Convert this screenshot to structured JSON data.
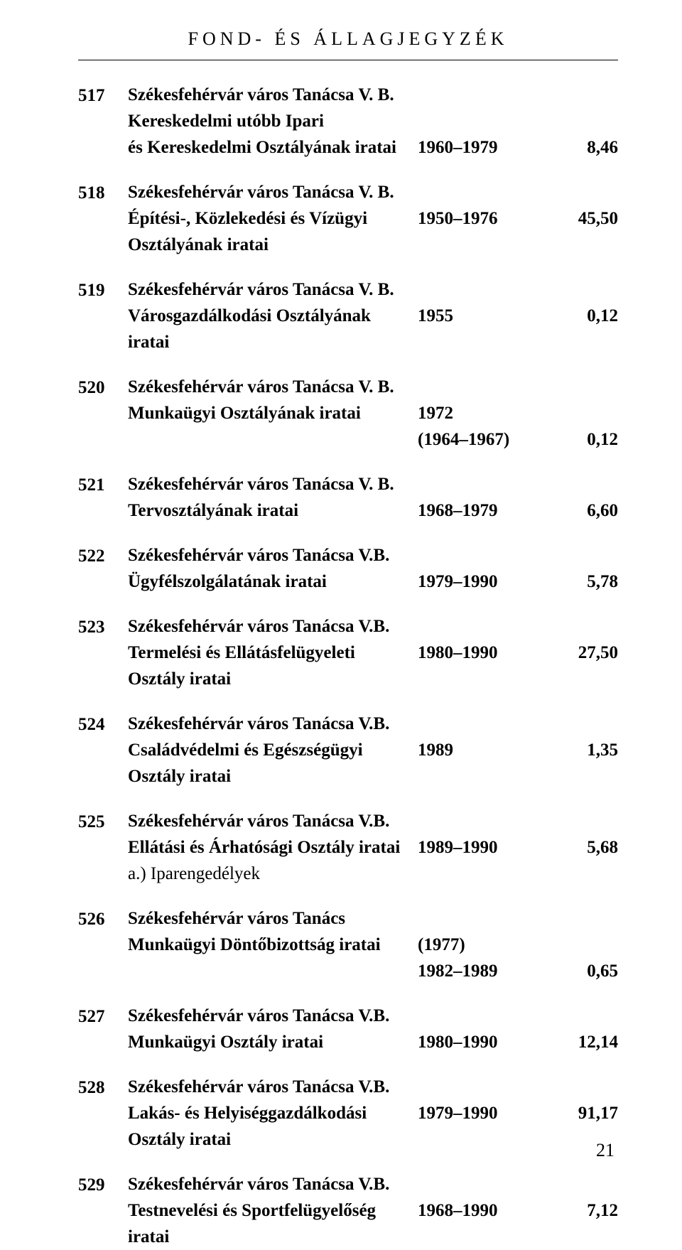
{
  "header": "FOND- ÉS ÁLLAGJEGYZÉK",
  "page_number": "21",
  "entries": [
    {
      "num": "517",
      "title": "Székesfehérvár város Tanácsa V. B.",
      "lines": [
        {
          "desc": "Kereskedelmi utóbb Ipari",
          "date": "",
          "amount": "",
          "bold": true
        },
        {
          "desc": "és Kereskedelmi Osztályának iratai",
          "date": "1960–1979",
          "amount": "8,46",
          "bold": true
        }
      ]
    },
    {
      "num": "518",
      "title": "Székesfehérvár város Tanácsa V. B.",
      "lines": [
        {
          "desc": "Építési-, Közlekedési és Vízügyi Osztályának iratai",
          "date": "1950–1976",
          "amount": "45,50",
          "bold": true
        }
      ]
    },
    {
      "num": "519",
      "title": "Székesfehérvár város Tanácsa V. B.",
      "lines": [
        {
          "desc": "Városgazdálkodási Osztályának iratai",
          "date": "1955",
          "amount": "0,12",
          "bold": true
        }
      ]
    },
    {
      "num": "520",
      "title": "Székesfehérvár város Tanácsa V. B.",
      "lines": [
        {
          "desc": "Munkaügyi Osztályának iratai",
          "date": "1972",
          "amount": "",
          "bold": true
        },
        {
          "desc": "",
          "date": "(1964–1967)",
          "amount": "0,12",
          "bold": true
        }
      ]
    },
    {
      "num": "521",
      "title": "Székesfehérvár város Tanácsa V. B.",
      "lines": [
        {
          "desc": "Tervosztályának iratai",
          "date": "1968–1979",
          "amount": "6,60",
          "bold": true
        }
      ]
    },
    {
      "num": "522",
      "title": "Székesfehérvár város Tanácsa V.B.",
      "lines": [
        {
          "desc": "Ügyfélszolgálatának iratai",
          "date": "1979–1990",
          "amount": "5,78",
          "bold": true
        }
      ]
    },
    {
      "num": "523",
      "title": "Székesfehérvár város Tanácsa V.B.",
      "lines": [
        {
          "desc": "Termelési és Ellátásfelügyeleti Osztály iratai",
          "date": "1980–1990",
          "amount": "27,50",
          "bold": true
        }
      ]
    },
    {
      "num": "524",
      "title": "Székesfehérvár város Tanácsa V.B.",
      "lines": [
        {
          "desc": "Családvédelmi és Egészségügyi Osztály iratai",
          "date": "1989",
          "amount": "1,35",
          "bold": true
        }
      ]
    },
    {
      "num": "525",
      "title": "Székesfehérvár város Tanácsa V.B.",
      "lines": [
        {
          "desc": "Ellátási és Árhatósági Osztály iratai",
          "date": "1989–1990",
          "amount": "5,68",
          "bold": true
        },
        {
          "desc": "a.) Iparengedélyek",
          "date": "",
          "amount": "",
          "bold": false
        }
      ]
    },
    {
      "num": "526",
      "title": "Székesfehérvár város Tanács",
      "lines": [
        {
          "desc": "Munkaügyi Döntőbizottság iratai",
          "date": "(1977)",
          "amount": "",
          "bold": true
        },
        {
          "desc": "",
          "date": "1982–1989",
          "amount": "0,65",
          "bold": true
        }
      ]
    },
    {
      "num": "527",
      "title": "Székesfehérvár város Tanácsa V.B.",
      "lines": [
        {
          "desc": "Munkaügyi Osztály iratai",
          "date": "1980–1990",
          "amount": "12,14",
          "bold": true
        }
      ]
    },
    {
      "num": "528",
      "title": "Székesfehérvár város Tanácsa V.B.",
      "lines": [
        {
          "desc": "Lakás- és Helyiséggazdálkodási Osztály iratai",
          "date": "1979–1990",
          "amount": "91,17",
          "bold": true
        }
      ]
    },
    {
      "num": "529",
      "title": "Székesfehérvár város Tanácsa V.B.",
      "lines": [
        {
          "desc": "Testnevelési és Sportfelügyelőség iratai",
          "date": "1968–1990",
          "amount": "7,12",
          "bold": true
        }
      ]
    }
  ]
}
